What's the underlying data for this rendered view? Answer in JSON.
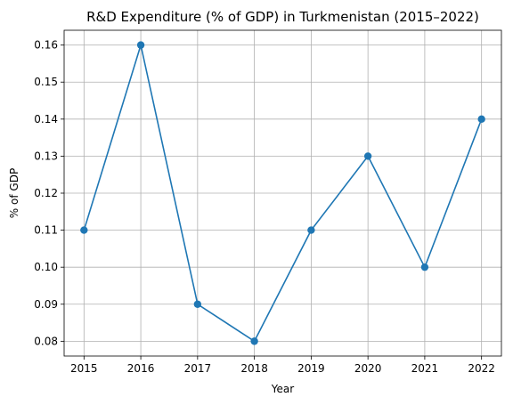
{
  "chart_data": {
    "type": "line",
    "title": "R&D Expenditure (% of GDP) in Turkmenistan (2015–2022)",
    "xlabel": "Year",
    "ylabel": "% of GDP",
    "x": [
      2015,
      2016,
      2017,
      2018,
      2019,
      2020,
      2021,
      2022
    ],
    "series": [
      {
        "values": [
          0.11,
          0.16,
          0.09,
          0.08,
          0.11,
          0.13,
          0.1,
          0.14
        ],
        "color": "#1f77b4",
        "marker": "circle"
      }
    ],
    "x_ticks": [
      "2015",
      "2016",
      "2017",
      "2018",
      "2019",
      "2020",
      "2021",
      "2022"
    ],
    "y_ticks": [
      "0.08",
      "0.09",
      "0.10",
      "0.11",
      "0.12",
      "0.13",
      "0.14",
      "0.15",
      "0.16"
    ],
    "ylim": [
      0.076,
      0.164
    ],
    "xlim": [
      2014.65,
      2022.35
    ],
    "grid": true
  }
}
